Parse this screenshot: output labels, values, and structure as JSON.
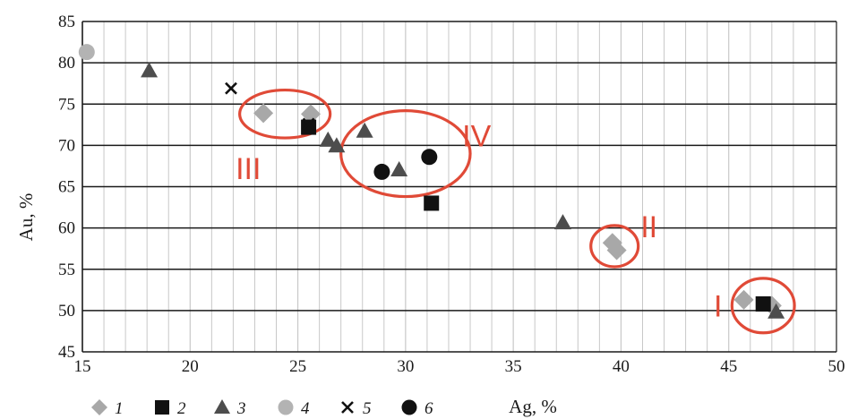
{
  "chart_data": {
    "type": "scatter",
    "xlabel": "Ag, %",
    "ylabel": "Au, %",
    "xlim": [
      15,
      50
    ],
    "ylim": [
      45,
      85
    ],
    "x_ticks": [
      15,
      20,
      25,
      30,
      35,
      40,
      45,
      50
    ],
    "y_ticks": [
      45,
      50,
      55,
      60,
      65,
      70,
      75,
      80,
      85
    ],
    "grid": "major horizontal and minor vertical",
    "legend_position": "bottom",
    "series": [
      {
        "name": "1",
        "marker": "diamond",
        "color": "#a8a8a8",
        "points": [
          [
            23.4,
            73.9
          ],
          [
            25.6,
            73.8
          ],
          [
            39.6,
            58.2
          ],
          [
            39.8,
            57.3
          ],
          [
            45.7,
            51.3
          ],
          [
            47.0,
            50.6
          ]
        ]
      },
      {
        "name": "2",
        "marker": "square",
        "color": "#111111",
        "points": [
          [
            25.5,
            72.2
          ],
          [
            31.2,
            63.0
          ],
          [
            46.6,
            50.8
          ]
        ]
      },
      {
        "name": "3",
        "marker": "triangle",
        "color": "#4d4d4d",
        "points": [
          [
            18.1,
            79.0
          ],
          [
            26.4,
            70.6
          ],
          [
            26.8,
            69.9
          ],
          [
            28.1,
            71.7
          ],
          [
            29.7,
            67.0
          ],
          [
            37.3,
            60.6
          ],
          [
            47.2,
            49.8
          ]
        ]
      },
      {
        "name": "4",
        "marker": "circle",
        "color": "#b3b3b3",
        "points": [
          [
            15.2,
            81.3
          ]
        ]
      },
      {
        "name": "5",
        "marker": "cross",
        "color": "#111111",
        "points": [
          [
            21.9,
            76.9
          ],
          [
            25.5,
            72.6
          ]
        ]
      },
      {
        "name": "6",
        "marker": "circle",
        "color": "#111111",
        "points": [
          [
            28.9,
            66.8
          ],
          [
            31.1,
            68.6
          ]
        ]
      }
    ],
    "annotations": [
      {
        "label": "III",
        "label_x": 22.7,
        "label_y": 67.2,
        "ellipse_cx": 24.4,
        "ellipse_cy": 73.8,
        "ellipse_rx": 2.1,
        "ellipse_ry": 2.9
      },
      {
        "label": "IV",
        "label_x": 33.3,
        "label_y": 71.2,
        "ellipse_cx": 30.0,
        "ellipse_cy": 69.0,
        "ellipse_rx": 3.0,
        "ellipse_ry": 5.2
      },
      {
        "label": "II",
        "label_x": 41.3,
        "label_y": 60.2,
        "ellipse_cx": 39.7,
        "ellipse_cy": 57.8,
        "ellipse_rx": 1.1,
        "ellipse_ry": 2.5
      },
      {
        "label": "I",
        "label_x": 44.5,
        "label_y": 50.6,
        "ellipse_cx": 46.6,
        "ellipse_cy": 50.6,
        "ellipse_rx": 1.45,
        "ellipse_ry": 3.3
      }
    ],
    "annotation_color": "#e04a37",
    "gridline_color": "#1a1a1a",
    "minor_gridline_color": "#c8c8c8"
  }
}
